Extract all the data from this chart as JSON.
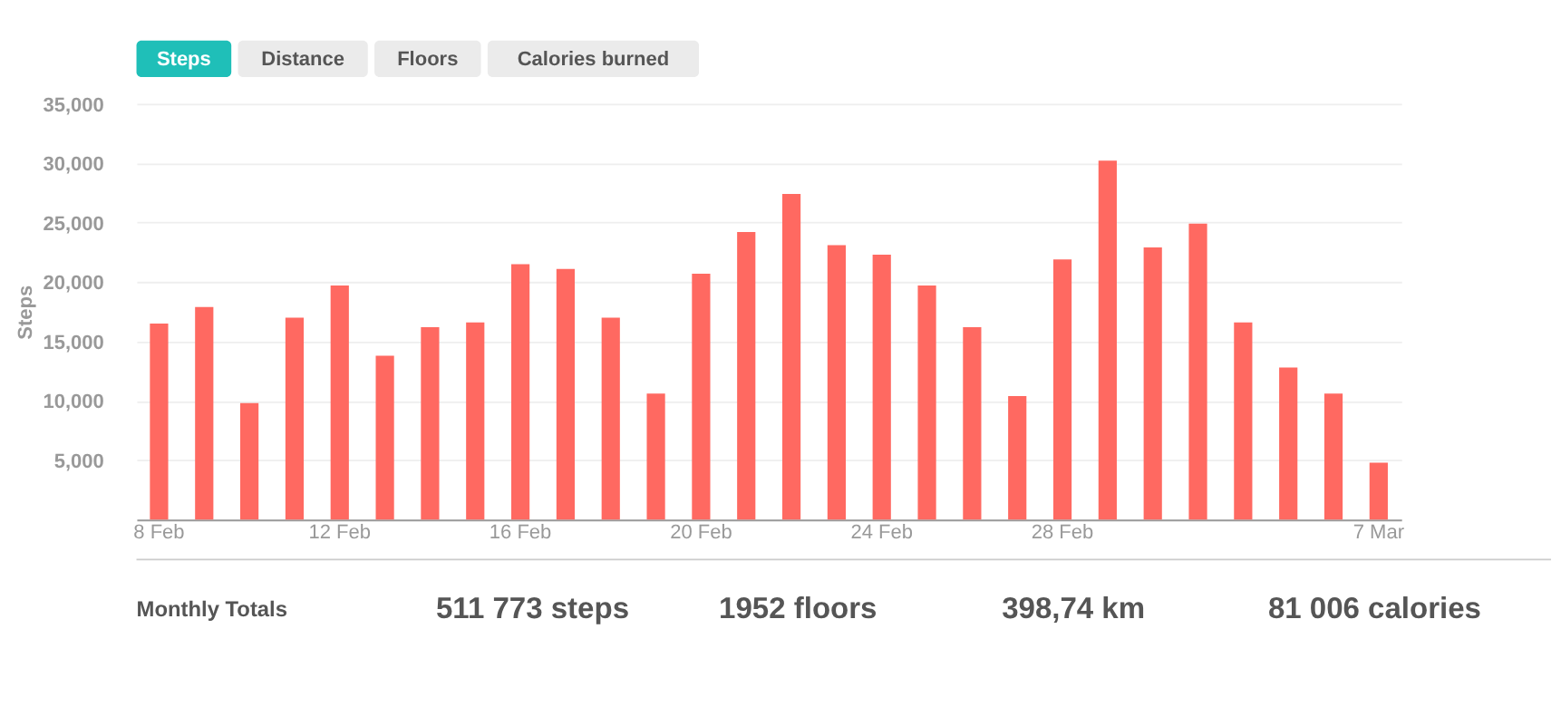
{
  "chart_data": {
    "type": "bar",
    "ylabel": "Steps",
    "categories": [
      "8 Feb",
      null,
      null,
      null,
      "12 Feb",
      null,
      null,
      null,
      "16 Feb",
      null,
      null,
      null,
      "20 Feb",
      null,
      null,
      null,
      "24 Feb",
      null,
      null,
      null,
      "28 Feb",
      null,
      null,
      null,
      null,
      null,
      null,
      "7 Mar"
    ],
    "values": [
      16500,
      17900,
      9800,
      17000,
      19700,
      13800,
      16200,
      16600,
      21500,
      21100,
      17000,
      10600,
      20700,
      24200,
      27400,
      23100,
      22300,
      19700,
      16200,
      10400,
      21900,
      30200,
      22900,
      24900,
      16600,
      12800,
      10600,
      4800
    ],
    "color": "#ff6961",
    "ylim": [
      0,
      35000
    ],
    "yticks": [
      {
        "value": 5000,
        "label": "5,000"
      },
      {
        "value": 10000,
        "label": "10,000"
      },
      {
        "value": 15000,
        "label": "15,000"
      },
      {
        "value": 20000,
        "label": "20,000"
      },
      {
        "value": 25000,
        "label": "25,000"
      },
      {
        "value": 30000,
        "label": "30,000"
      },
      {
        "value": 35000,
        "label": "35,000"
      }
    ],
    "grid": "y",
    "annotations": [
      "Steps",
      "Distance",
      "Floors",
      "Calories burned",
      "Monthly Totals",
      "511 773 steps",
      "1952 floors",
      "398,74 km",
      "81 006 calories"
    ]
  }
}
